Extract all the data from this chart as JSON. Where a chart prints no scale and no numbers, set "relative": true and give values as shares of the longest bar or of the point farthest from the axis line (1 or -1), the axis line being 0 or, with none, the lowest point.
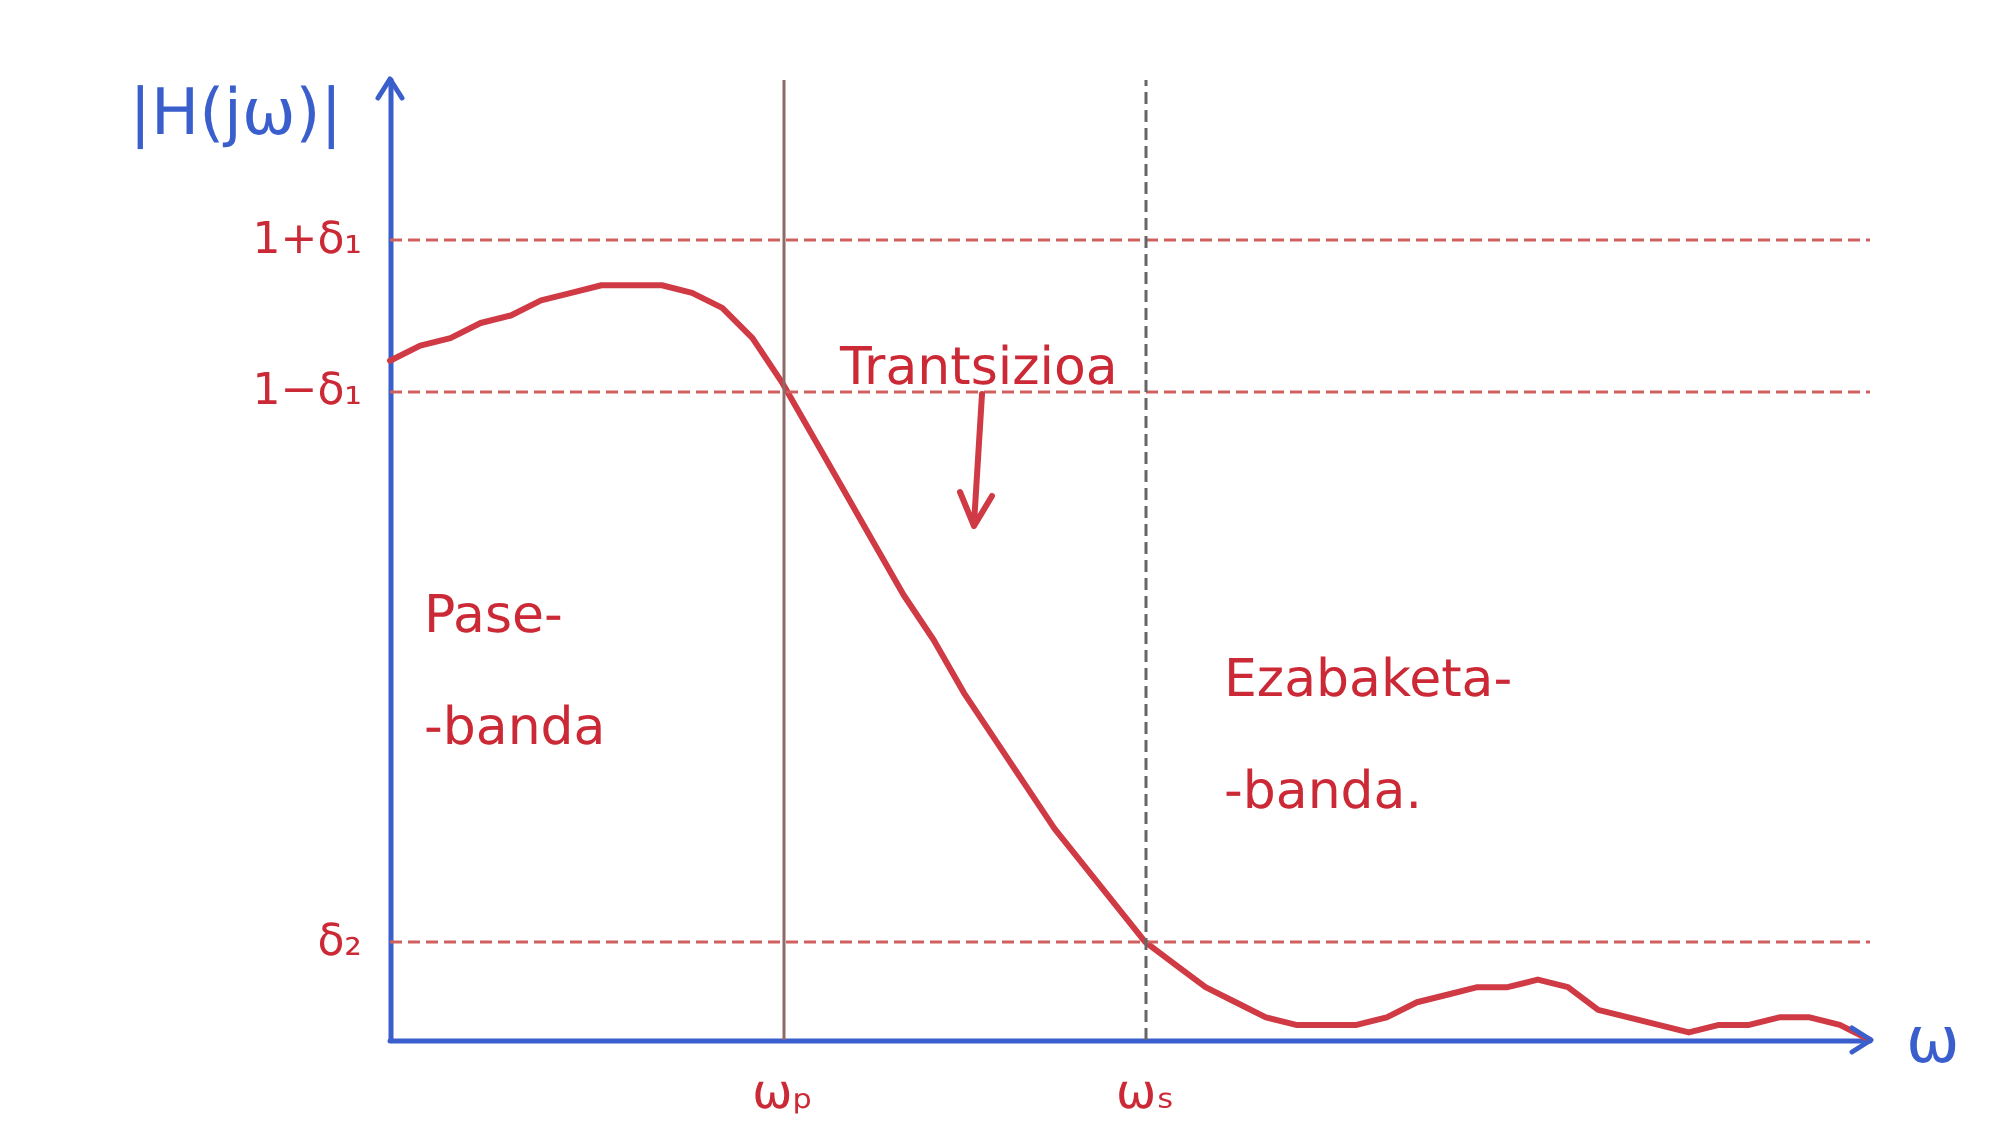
{
  "chart_data": {
    "type": "line",
    "xlabel": "ω",
    "ylabel": "|H(jω)|",
    "relative": true,
    "marker": "none",
    "categories": [
      null,
      null,
      null,
      null,
      null,
      null,
      null,
      null,
      null,
      null,
      null,
      null,
      null,
      "ωₚ",
      null,
      null,
      null,
      null,
      null,
      null,
      null,
      null,
      null,
      null,
      null,
      "ωₛ",
      null,
      null,
      null,
      null,
      null,
      null,
      null,
      null,
      null,
      null,
      null,
      null,
      null,
      null,
      null,
      null,
      null,
      null,
      null,
      null,
      null,
      null,
      null,
      null
    ],
    "series": [
      {
        "color": "#cf3a45",
        "values": [
          0.9,
          0.92,
          0.93,
          0.95,
          0.96,
          0.98,
          0.99,
          1.0,
          1.0,
          1.0,
          0.99,
          0.97,
          0.93,
          0.87,
          0.8,
          0.73,
          0.66,
          0.59,
          0.53,
          0.46,
          0.4,
          0.34,
          0.28,
          0.23,
          0.18,
          0.13,
          0.1,
          0.07,
          0.05,
          0.03,
          0.02,
          0.02,
          0.02,
          0.03,
          0.05,
          0.06,
          0.07,
          0.07,
          0.08,
          0.07,
          0.04,
          0.03,
          0.02,
          0.01,
          0.02,
          0.02,
          0.03,
          0.03,
          0.02,
          0.0
        ]
      }
    ],
    "ref_lines": [
      {
        "axis": "y",
        "value": 1.06,
        "label": "1+δ₁",
        "color": "#d0605f",
        "line_style": "dashed"
      },
      {
        "axis": "y",
        "value": 0.86,
        "label": "1−δ₁",
        "color": "#d0605f",
        "line_style": "dashed"
      },
      {
        "axis": "y",
        "value": 0.13,
        "label": "δ₂",
        "color": "#d0605f",
        "line_style": "dashed"
      },
      {
        "axis": "x",
        "value": "ωₚ",
        "color": "#8c6a6a",
        "line_style": "solid"
      },
      {
        "axis": "x",
        "value": "ωₛ",
        "color": "#666666",
        "line_style": "dashed"
      }
    ],
    "annotations": [
      "Trantsizioa",
      "Pase-\n-banda",
      "Ezabaketa-\n-banda."
    ]
  }
}
